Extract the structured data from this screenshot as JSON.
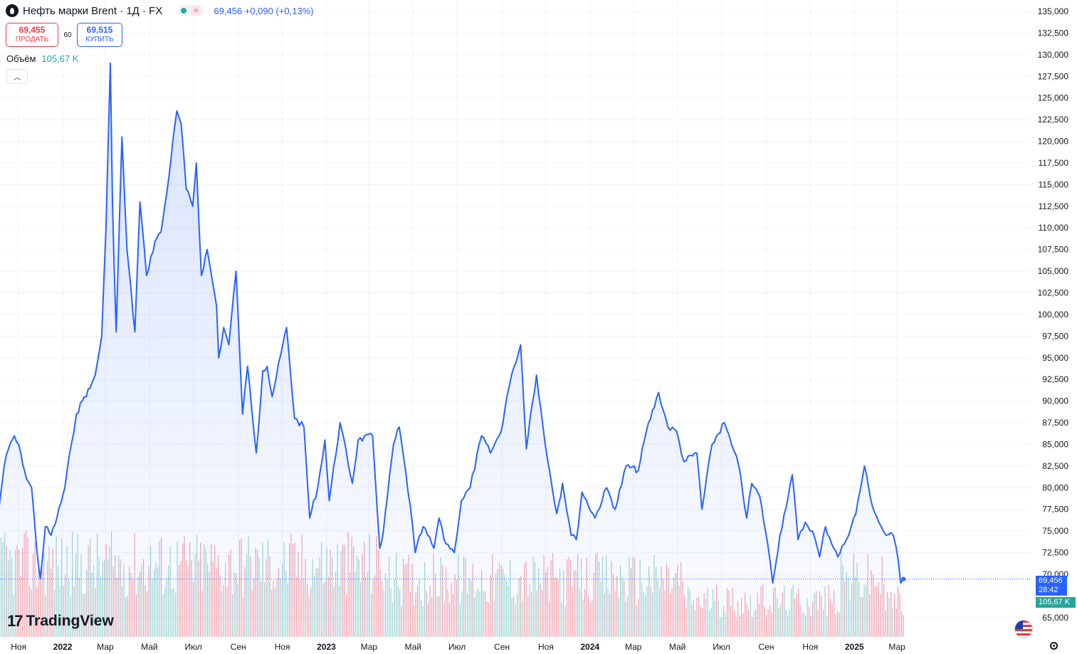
{
  "header": {
    "title": "Нефть марки Brent · 1Д · FX",
    "price_info": "69,456 +0,090 (+0,13%)"
  },
  "trade": {
    "sell_price": "69,455",
    "sell_label": "ПРОДАТЬ",
    "spread": "60",
    "buy_price": "69,515",
    "buy_label": "КУПИТЬ"
  },
  "volume_legend": {
    "label": "Объём",
    "value": "105,67 K"
  },
  "badges": {
    "price": "69,456",
    "countdown": "28:42",
    "volume": "105,67 K"
  },
  "logo": {
    "text": "TradingView"
  },
  "colors": {
    "line": "#2962ff",
    "up_volume": "#26a69a",
    "down_volume": "#f23645",
    "grid": "#f0f3fa"
  },
  "icons": [
    "symbol-icon",
    "chevron-up-icon",
    "us-flag-icon",
    "settings-icon",
    "tradingview-logo-icon"
  ],
  "chart_data": {
    "type": "area",
    "title": "Нефть марки Brent · 1Д · FX",
    "y_ticks": [
      "135,000",
      "132,500",
      "130,000",
      "127,500",
      "125,000",
      "122,500",
      "120,000",
      "117,500",
      "115,000",
      "112,500",
      "110,000",
      "107,500",
      "105,000",
      "102,500",
      "100,000",
      "97,500",
      "95,000",
      "92,500",
      "90,000",
      "87,500",
      "85,000",
      "82,500",
      "80,000",
      "77,500",
      "75,000",
      "72,500",
      "70,000",
      "65,000"
    ],
    "x_ticks": [
      "Ноя",
      "2022",
      "Мар",
      "Май",
      "Июл",
      "Сен",
      "Ноя",
      "2023",
      "Мар",
      "Май",
      "Июл",
      "Сен",
      "Ноя",
      "2024",
      "Мар",
      "Май",
      "Июл",
      "Сен",
      "Ноя",
      "2025",
      "Мар"
    ],
    "ylim": [
      63000,
      136000
    ],
    "x_start": "2021-10-01",
    "series": [
      {
        "points": [
          [
            "2021-10-01",
            74.5
          ],
          [
            "2021-10-06",
            78.5
          ],
          [
            "2021-10-12",
            82.5
          ],
          [
            "2021-10-18",
            84.5
          ],
          [
            "2021-10-26",
            86.0
          ],
          [
            "2021-11-04",
            84.0
          ],
          [
            "2021-11-12",
            81.0
          ],
          [
            "2021-11-19",
            80.0
          ],
          [
            "2021-11-26",
            73.0
          ],
          [
            "2021-12-01",
            69.5
          ],
          [
            "2021-12-08",
            75.5
          ],
          [
            "2021-12-16",
            74.5
          ],
          [
            "2021-12-24",
            76.5
          ],
          [
            "2022-01-04",
            80.0
          ],
          [
            "2022-01-13",
            85.0
          ],
          [
            "2022-01-20",
            88.5
          ],
          [
            "2022-01-31",
            90.5
          ],
          [
            "2022-02-08",
            91.5
          ],
          [
            "2022-02-15",
            93.0
          ],
          [
            "2022-02-24",
            97.5
          ],
          [
            "2022-03-02",
            110.0
          ],
          [
            "2022-03-08",
            129.0
          ],
          [
            "2022-03-11",
            112.5
          ],
          [
            "2022-03-16",
            98.0
          ],
          [
            "2022-03-24",
            120.5
          ],
          [
            "2022-03-31",
            107.5
          ],
          [
            "2022-04-11",
            98.0
          ],
          [
            "2022-04-18",
            113.0
          ],
          [
            "2022-04-27",
            104.5
          ],
          [
            "2022-05-09",
            108.5
          ],
          [
            "2022-05-17",
            109.5
          ],
          [
            "2022-05-25",
            114.0
          ],
          [
            "2022-06-08",
            123.5
          ],
          [
            "2022-06-14",
            122.0
          ],
          [
            "2022-06-21",
            114.5
          ],
          [
            "2022-06-30",
            112.5
          ],
          [
            "2022-07-05",
            117.5
          ],
          [
            "2022-07-12",
            104.5
          ],
          [
            "2022-07-20",
            107.5
          ],
          [
            "2022-08-02",
            101.0
          ],
          [
            "2022-08-05",
            95.0
          ],
          [
            "2022-08-12",
            98.5
          ],
          [
            "2022-08-19",
            96.5
          ],
          [
            "2022-08-29",
            105.0
          ],
          [
            "2022-09-07",
            88.5
          ],
          [
            "2022-09-14",
            94.0
          ],
          [
            "2022-09-26",
            84.0
          ],
          [
            "2022-10-05",
            93.5
          ],
          [
            "2022-10-11",
            94.0
          ],
          [
            "2022-10-18",
            90.5
          ],
          [
            "2022-11-07",
            98.5
          ],
          [
            "2022-11-18",
            88.0
          ],
          [
            "2022-12-01",
            87.0
          ],
          [
            "2022-12-09",
            76.5
          ],
          [
            "2022-12-20",
            80.0
          ],
          [
            "2022-12-30",
            85.5
          ],
          [
            "2023-01-05",
            78.5
          ],
          [
            "2023-01-20",
            87.5
          ],
          [
            "2023-02-06",
            80.5
          ],
          [
            "2023-02-14",
            85.5
          ],
          [
            "2023-03-06",
            86.0
          ],
          [
            "2023-03-16",
            73.0
          ],
          [
            "2023-03-21",
            75.0
          ],
          [
            "2023-04-04",
            85.0
          ],
          [
            "2023-04-12",
            87.0
          ],
          [
            "2023-04-27",
            78.0
          ],
          [
            "2023-05-04",
            72.5
          ],
          [
            "2023-05-15",
            75.5
          ],
          [
            "2023-05-30",
            73.0
          ],
          [
            "2023-06-06",
            76.5
          ],
          [
            "2023-06-13",
            74.0
          ],
          [
            "2023-06-27",
            72.5
          ],
          [
            "2023-07-07",
            78.5
          ],
          [
            "2023-07-19",
            80.0
          ],
          [
            "2023-08-04",
            86.0
          ],
          [
            "2023-08-16",
            84.0
          ],
          [
            "2023-08-31",
            86.5
          ],
          [
            "2023-09-08",
            90.5
          ],
          [
            "2023-09-18",
            94.0
          ],
          [
            "2023-09-27",
            96.5
          ],
          [
            "2023-10-05",
            84.5
          ],
          [
            "2023-10-10",
            88.0
          ],
          [
            "2023-10-19",
            93.0
          ],
          [
            "2023-10-31",
            85.0
          ],
          [
            "2023-11-07",
            81.5
          ],
          [
            "2023-11-16",
            77.0
          ],
          [
            "2023-11-24",
            80.5
          ],
          [
            "2023-12-06",
            74.5
          ],
          [
            "2023-12-13",
            74.0
          ],
          [
            "2023-12-21",
            79.5
          ],
          [
            "2024-01-08",
            76.5
          ],
          [
            "2024-01-24",
            80.0
          ],
          [
            "2024-02-05",
            77.5
          ],
          [
            "2024-02-20",
            82.5
          ],
          [
            "2024-03-08",
            82.0
          ],
          [
            "2024-03-19",
            86.5
          ],
          [
            "2024-04-05",
            91.0
          ],
          [
            "2024-04-18",
            87.0
          ],
          [
            "2024-04-30",
            86.5
          ],
          [
            "2024-05-10",
            83.0
          ],
          [
            "2024-05-28",
            84.0
          ],
          [
            "2024-06-04",
            77.5
          ],
          [
            "2024-06-18",
            85.0
          ],
          [
            "2024-07-05",
            87.5
          ],
          [
            "2024-07-15",
            85.0
          ],
          [
            "2024-07-25",
            82.5
          ],
          [
            "2024-08-05",
            76.5
          ],
          [
            "2024-08-12",
            80.5
          ],
          [
            "2024-08-23",
            79.0
          ],
          [
            "2024-09-03",
            73.5
          ],
          [
            "2024-09-10",
            69.0
          ],
          [
            "2024-09-20",
            74.5
          ],
          [
            "2024-10-07",
            81.5
          ],
          [
            "2024-10-15",
            74.0
          ],
          [
            "2024-10-25",
            76.0
          ],
          [
            "2024-11-04",
            75.0
          ],
          [
            "2024-11-14",
            72.0
          ],
          [
            "2024-11-22",
            75.5
          ],
          [
            "2024-12-09",
            72.0
          ],
          [
            "2024-12-18",
            73.5
          ],
          [
            "2025-01-03",
            77.0
          ],
          [
            "2025-01-15",
            82.5
          ],
          [
            "2025-01-24",
            78.5
          ],
          [
            "2025-02-04",
            76.0
          ],
          [
            "2025-02-14",
            74.5
          ],
          [
            "2025-02-24",
            74.5
          ],
          [
            "2025-03-03",
            71.5
          ],
          [
            "2025-03-06",
            69.0
          ],
          [
            "2025-03-10",
            69.456
          ]
        ]
      }
    ]
  }
}
